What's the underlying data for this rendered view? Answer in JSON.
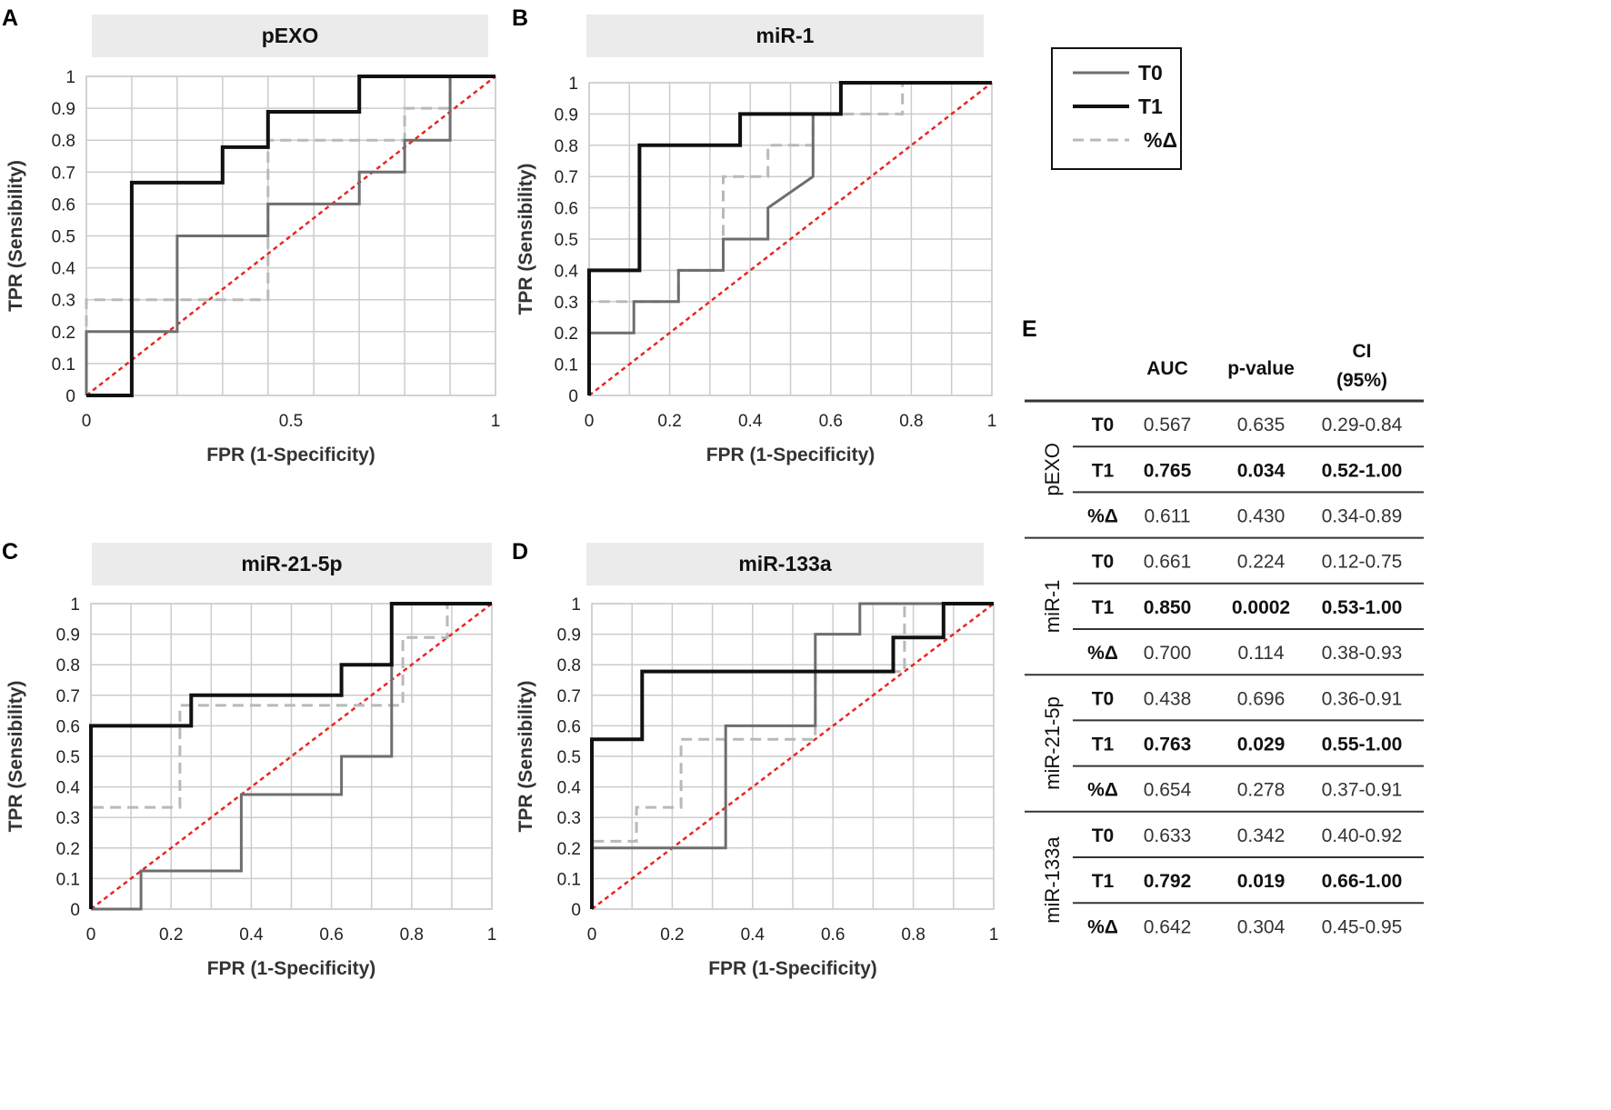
{
  "figure_letters": {
    "a": "A",
    "b": "B",
    "c": "C",
    "d": "D",
    "e": "E"
  },
  "colors": {
    "t0": "#6e6e6e",
    "t1": "#111111",
    "pct": "#b9b9b9",
    "diagonal": "#e8261f",
    "grid": "#cccccc",
    "title_bg": "#ebebeb"
  },
  "legend": {
    "t0": "T0",
    "t1": "T1",
    "pct": "%Δ"
  },
  "chart_data": [
    {
      "type": "line",
      "letter": "A",
      "title": "pEXO",
      "xlabel": "FPR (1-Specificity)",
      "ylabel": "TPR (Sensibility)",
      "xlim": [
        0,
        1
      ],
      "ylim": [
        0,
        1
      ],
      "xticks": [
        0,
        0.5,
        1
      ],
      "xtick_labels": [
        "0",
        "0.5",
        "1"
      ],
      "yticks": [
        0,
        0.1,
        0.2,
        0.3,
        0.4,
        0.5,
        0.6,
        0.7,
        0.8,
        0.9,
        1
      ],
      "ytick_labels": [
        "0",
        "0.1",
        "0.2",
        "0.3",
        "0.4",
        "0.5",
        "0.6",
        "0.7",
        "0.8",
        "0.9",
        "1"
      ],
      "grid_x": [
        0,
        0.111,
        0.222,
        0.333,
        0.444,
        0.556,
        0.667,
        0.778,
        0.889,
        1
      ],
      "series": [
        {
          "name": "T0",
          "x": [
            0,
            0,
            0.222,
            0.222,
            0.444,
            0.444,
            0.667,
            0.667,
            0.778,
            0.778,
            0.889,
            0.889,
            1
          ],
          "y": [
            0,
            0.2,
            0.2,
            0.5,
            0.5,
            0.6,
            0.6,
            0.7,
            0.7,
            0.8,
            0.8,
            1,
            1
          ]
        },
        {
          "name": "T1",
          "x": [
            0,
            0.111,
            0.111,
            0.333,
            0.333,
            0.444,
            0.444,
            0.667,
            0.667,
            1
          ],
          "y": [
            0,
            0,
            0.667,
            0.667,
            0.778,
            0.778,
            0.889,
            0.889,
            1,
            1
          ]
        },
        {
          "name": "%Δ",
          "x": [
            0,
            0,
            0.444,
            0.444,
            0.778,
            0.778,
            0.889,
            0.889,
            1
          ],
          "y": [
            0,
            0.3,
            0.3,
            0.8,
            0.8,
            0.9,
            0.9,
            1,
            1
          ]
        },
        {
          "name": "diagonal",
          "x": [
            0,
            1
          ],
          "y": [
            0,
            1
          ]
        }
      ]
    },
    {
      "type": "line",
      "letter": "B",
      "title": "miR-1",
      "xlabel": "FPR (1-Specificity)",
      "ylabel": "TPR (Sensibility)",
      "xlim": [
        0,
        1
      ],
      "ylim": [
        0,
        1
      ],
      "xticks": [
        0,
        0.2,
        0.4,
        0.6,
        0.8,
        1
      ],
      "xtick_labels": [
        "0",
        "0.2",
        "0.4",
        "0.6",
        "0.8",
        "1"
      ],
      "yticks": [
        0,
        0.1,
        0.2,
        0.3,
        0.4,
        0.5,
        0.6,
        0.7,
        0.8,
        0.9,
        1
      ],
      "ytick_labels": [
        "0",
        "0.1",
        "0.2",
        "0.3",
        "0.4",
        "0.5",
        "0.6",
        "0.7",
        "0.8",
        "0.9",
        "1"
      ],
      "grid_x": [
        0,
        0.1,
        0.2,
        0.3,
        0.4,
        0.5,
        0.6,
        0.7,
        0.8,
        0.9,
        1
      ],
      "series": [
        {
          "name": "T0",
          "x": [
            0,
            0,
            0.111,
            0.111,
            0.222,
            0.222,
            0.333,
            0.333,
            0.444,
            0.444,
            0.556,
            0.556,
            0.625,
            0.625,
            0.667,
            0.667,
            1
          ],
          "y": [
            0,
            0.2,
            0.2,
            0.3,
            0.3,
            0.4,
            0.4,
            0.5,
            0.5,
            0.6,
            0.7,
            0.9,
            0.9,
            1,
            1,
            1,
            1
          ]
        },
        {
          "name": "T1",
          "x": [
            0,
            0,
            0.125,
            0.125,
            0.375,
            0.375,
            0.625,
            0.625,
            1
          ],
          "y": [
            0,
            0.4,
            0.4,
            0.8,
            0.8,
            0.9,
            0.9,
            1,
            1
          ]
        },
        {
          "name": "%Δ",
          "x": [
            0,
            0,
            0.222,
            0.222,
            0.333,
            0.333,
            0.444,
            0.444,
            0.556,
            0.556,
            0.778,
            0.778,
            1
          ],
          "y": [
            0,
            0.3,
            0.3,
            0.4,
            0.4,
            0.7,
            0.7,
            0.8,
            0.8,
            0.9,
            0.9,
            1,
            1
          ]
        },
        {
          "name": "diagonal",
          "x": [
            0,
            1
          ],
          "y": [
            0,
            1
          ]
        }
      ]
    },
    {
      "type": "line",
      "letter": "C",
      "title": "miR-21-5p",
      "xlabel": "FPR (1-Specificity)",
      "ylabel": "TPR (Sensibility)",
      "xlim": [
        0,
        1
      ],
      "ylim": [
        0,
        1
      ],
      "xticks": [
        0,
        0.2,
        0.4,
        0.6,
        0.8,
        1
      ],
      "xtick_labels": [
        "0",
        "0.2",
        "0.4",
        "0.6",
        "0.8",
        "1"
      ],
      "yticks": [
        0,
        0.1,
        0.2,
        0.3,
        0.4,
        0.5,
        0.6,
        0.7,
        0.8,
        0.9,
        1
      ],
      "ytick_labels": [
        "0",
        "0.1",
        "0.2",
        "0.3",
        "0.4",
        "0.5",
        "0.6",
        "0.7",
        "0.8",
        "0.9",
        "1"
      ],
      "grid_x": [
        0,
        0.1,
        0.2,
        0.3,
        0.4,
        0.5,
        0.6,
        0.7,
        0.8,
        0.9,
        1
      ],
      "series": [
        {
          "name": "T0",
          "x": [
            0,
            0.125,
            0.125,
            0.375,
            0.375,
            0.625,
            0.625,
            0.75,
            0.75,
            1
          ],
          "y": [
            0,
            0,
            0.125,
            0.125,
            0.375,
            0.375,
            0.5,
            0.5,
            1,
            1
          ]
        },
        {
          "name": "T1",
          "x": [
            0,
            0,
            0.222,
            0.222,
            0.25,
            0.25,
            0.625,
            0.625,
            0.75,
            0.75,
            1
          ],
          "y": [
            0,
            0.6,
            0.6,
            0.6,
            0.6,
            0.7,
            0.7,
            0.8,
            0.8,
            1,
            1
          ]
        },
        {
          "name": "%Δ",
          "x": [
            0,
            0,
            0.222,
            0.222,
            0.778,
            0.778,
            0.889,
            0.889,
            1
          ],
          "y": [
            0,
            0.333,
            0.333,
            0.667,
            0.667,
            0.889,
            0.889,
            1,
            1
          ]
        },
        {
          "name": "diagonal",
          "x": [
            0,
            1
          ],
          "y": [
            0,
            1
          ]
        }
      ]
    },
    {
      "type": "line",
      "letter": "D",
      "title": "miR-133a",
      "xlabel": "FPR (1-Specificity)",
      "ylabel": "TPR (Sensibility)",
      "xlim": [
        0,
        1
      ],
      "ylim": [
        0,
        1
      ],
      "xticks": [
        0,
        0.2,
        0.4,
        0.6,
        0.8,
        1
      ],
      "xtick_labels": [
        "0",
        "0.2",
        "0.4",
        "0.6",
        "0.8",
        "1"
      ],
      "yticks": [
        0,
        0.1,
        0.2,
        0.3,
        0.4,
        0.5,
        0.6,
        0.7,
        0.8,
        0.9,
        1
      ],
      "ytick_labels": [
        "0",
        "0.1",
        "0.2",
        "0.3",
        "0.4",
        "0.5",
        "0.6",
        "0.7",
        "0.8",
        "0.9",
        "1"
      ],
      "grid_x": [
        0,
        0.1,
        0.2,
        0.3,
        0.4,
        0.5,
        0.6,
        0.7,
        0.8,
        0.9,
        1
      ],
      "series": [
        {
          "name": "T0",
          "x": [
            0,
            0,
            0.333,
            0.333,
            0.556,
            0.556,
            0.667,
            0.667,
            1
          ],
          "y": [
            0,
            0.2,
            0.2,
            0.6,
            0.6,
            0.9,
            0.9,
            1,
            1
          ]
        },
        {
          "name": "T1",
          "x": [
            0,
            0,
            0.125,
            0.125,
            0.75,
            0.75,
            0.875,
            0.875,
            1
          ],
          "y": [
            0,
            0.556,
            0.556,
            0.778,
            0.778,
            0.889,
            0.889,
            1,
            1
          ]
        },
        {
          "name": "%Δ",
          "x": [
            0,
            0,
            0.111,
            0.111,
            0.222,
            0.222,
            0.556,
            0.556,
            0.778,
            0.778,
            1
          ],
          "y": [
            0,
            0.222,
            0.222,
            0.333,
            0.333,
            0.556,
            0.556,
            0.778,
            0.778,
            1,
            1
          ]
        },
        {
          "name": "diagonal",
          "x": [
            0,
            1
          ],
          "y": [
            0,
            1
          ]
        }
      ]
    },
    {
      "type": "table",
      "letter": "E",
      "headers": {
        "auc": "AUC",
        "p": "p-value",
        "ci_line1": "CI",
        "ci_line2": "(95%)"
      },
      "groups": [
        {
          "name": "pEXO",
          "rows": [
            {
              "label": "T0",
              "auc": "0.567",
              "p": "0.635",
              "ci": "0.29-0.84",
              "bold": false
            },
            {
              "label": "T1",
              "auc": "0.765",
              "p": "0.034",
              "ci": "0.52-1.00",
              "bold": true
            },
            {
              "label": "%Δ",
              "auc": "0.611",
              "p": "0.430",
              "ci": "0.34-0.89",
              "bold": false
            }
          ]
        },
        {
          "name": "miR-1",
          "rows": [
            {
              "label": "T0",
              "auc": "0.661",
              "p": "0.224",
              "ci": "0.12-0.75",
              "bold": false
            },
            {
              "label": "T1",
              "auc": "0.850",
              "p": "0.0002",
              "ci": "0.53-1.00",
              "bold": true
            },
            {
              "label": "%Δ",
              "auc": "0.700",
              "p": "0.114",
              "ci": "0.38-0.93",
              "bold": false
            }
          ]
        },
        {
          "name": "miR-21-5p",
          "rows": [
            {
              "label": "T0",
              "auc": "0.438",
              "p": "0.696",
              "ci": "0.36-0.91",
              "bold": false
            },
            {
              "label": "T1",
              "auc": "0.763",
              "p": "0.029",
              "ci": "0.55-1.00",
              "bold": true
            },
            {
              "label": "%Δ",
              "auc": "0.654",
              "p": "0.278",
              "ci": "0.37-0.91",
              "bold": false
            }
          ]
        },
        {
          "name": "miR-133a",
          "rows": [
            {
              "label": "T0",
              "auc": "0.633",
              "p": "0.342",
              "ci": "0.40-0.92",
              "bold": false
            },
            {
              "label": "T1",
              "auc": "0.792",
              "p": "0.019",
              "ci": "0.66-1.00",
              "bold": true
            },
            {
              "label": "%Δ",
              "auc": "0.642",
              "p": "0.304",
              "ci": "0.45-0.95",
              "bold": false
            }
          ]
        }
      ]
    }
  ]
}
